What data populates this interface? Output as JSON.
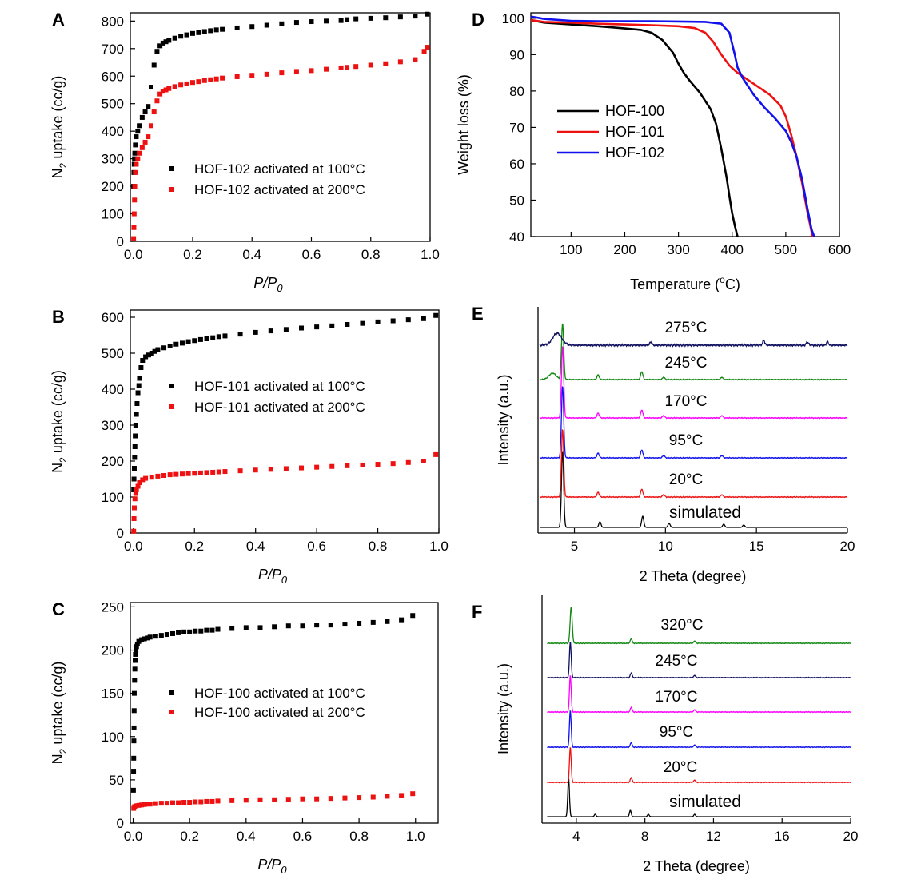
{
  "figure": {
    "colors": {
      "black": "#000000",
      "red": "#ee1111",
      "blue": "#1111ee",
      "navy": "#101060",
      "green": "#118811",
      "magenta": "#ff00ff"
    }
  },
  "chart_data": [
    {
      "panel": "A",
      "type": "scatter",
      "title": "",
      "xlabel": "P/P",
      "xlabel_sub": "0",
      "ylabel": "N",
      "ylabel_sub": "2",
      "ylabel_rest": " uptake (cc/g)",
      "xlim": [
        -0.01,
        1.0
      ],
      "ylim": [
        0,
        830
      ],
      "xticks": [
        "0.0",
        "0.2",
        "0.4",
        "0.6",
        "0.8",
        "1.0"
      ],
      "xtick_values": [
        0,
        0.2,
        0.4,
        0.6,
        0.8,
        1.0
      ],
      "yticks": [
        "0",
        "100",
        "200",
        "300",
        "400",
        "500",
        "600",
        "700",
        "800"
      ],
      "ytick_values": [
        0,
        100,
        200,
        300,
        400,
        500,
        600,
        700,
        800
      ],
      "legend_position": "center-right",
      "series": [
        {
          "name": "HOF-102 activated at 100°C",
          "color": "#000000",
          "x": [
            0.001,
            0.002,
            0.003,
            0.004,
            0.005,
            0.007,
            0.01,
            0.015,
            0.02,
            0.03,
            0.04,
            0.05,
            0.06,
            0.07,
            0.08,
            0.09,
            0.1,
            0.11,
            0.12,
            0.14,
            0.16,
            0.18,
            0.2,
            0.22,
            0.24,
            0.26,
            0.28,
            0.3,
            0.35,
            0.4,
            0.45,
            0.5,
            0.55,
            0.6,
            0.65,
            0.7,
            0.72,
            0.75,
            0.8,
            0.85,
            0.9,
            0.95,
            0.99
          ],
          "y": [
            200,
            250,
            280,
            300,
            320,
            350,
            380,
            400,
            420,
            450,
            470,
            490,
            560,
            640,
            690,
            710,
            720,
            725,
            730,
            738,
            745,
            750,
            755,
            758,
            762,
            765,
            768,
            770,
            775,
            780,
            785,
            790,
            795,
            798,
            800,
            802,
            805,
            808,
            810,
            812,
            815,
            818,
            825
          ]
        },
        {
          "name": "HOF-102 activated at 200°C",
          "color": "#ee1111",
          "x": [
            0.001,
            0.002,
            0.003,
            0.004,
            0.005,
            0.007,
            0.01,
            0.015,
            0.02,
            0.03,
            0.04,
            0.05,
            0.06,
            0.07,
            0.08,
            0.09,
            0.1,
            0.11,
            0.12,
            0.14,
            0.16,
            0.18,
            0.2,
            0.22,
            0.24,
            0.26,
            0.28,
            0.3,
            0.35,
            0.4,
            0.45,
            0.5,
            0.55,
            0.6,
            0.65,
            0.7,
            0.72,
            0.75,
            0.8,
            0.85,
            0.9,
            0.95,
            0.98,
            0.99
          ],
          "y": [
            10,
            50,
            100,
            150,
            200,
            250,
            280,
            300,
            320,
            340,
            360,
            380,
            420,
            470,
            510,
            535,
            545,
            550,
            555,
            562,
            568,
            572,
            577,
            580,
            584,
            587,
            590,
            593,
            598,
            603,
            607,
            612,
            617,
            620,
            625,
            630,
            632,
            635,
            640,
            645,
            652,
            660,
            690,
            705
          ]
        }
      ]
    },
    {
      "panel": "B",
      "type": "scatter",
      "title": "",
      "xlabel": "P/P",
      "xlabel_sub": "0",
      "ylabel": "N",
      "ylabel_sub": "2",
      "ylabel_rest": " uptake (cc/g)",
      "xlim": [
        -0.01,
        1.0
      ],
      "ylim": [
        0,
        620
      ],
      "xticks": [
        "0.0",
        "0.2",
        "0.4",
        "0.6",
        "0.8",
        "1.0"
      ],
      "xtick_values": [
        0,
        0.2,
        0.4,
        0.6,
        0.8,
        1.0
      ],
      "yticks": [
        "0",
        "100",
        "200",
        "300",
        "400",
        "500",
        "600"
      ],
      "ytick_values": [
        0,
        100,
        200,
        300,
        400,
        500,
        600
      ],
      "legend_position": "center-right",
      "series": [
        {
          "name": "HOF-101 activated at 100°C",
          "color": "#000000",
          "x": [
            0.001,
            0.002,
            0.003,
            0.004,
            0.005,
            0.006,
            0.008,
            0.01,
            0.012,
            0.015,
            0.018,
            0.02,
            0.025,
            0.03,
            0.04,
            0.05,
            0.06,
            0.07,
            0.08,
            0.1,
            0.12,
            0.14,
            0.16,
            0.18,
            0.2,
            0.22,
            0.24,
            0.26,
            0.28,
            0.3,
            0.35,
            0.4,
            0.45,
            0.5,
            0.55,
            0.6,
            0.65,
            0.7,
            0.75,
            0.8,
            0.85,
            0.9,
            0.95,
            0.99
          ],
          "y": [
            120,
            150,
            180,
            210,
            240,
            270,
            300,
            330,
            360,
            390,
            410,
            430,
            460,
            480,
            490,
            495,
            500,
            505,
            510,
            515,
            520,
            525,
            528,
            532,
            535,
            538,
            540,
            543,
            546,
            548,
            553,
            558,
            562,
            566,
            570,
            573,
            576,
            580,
            583,
            587,
            590,
            593,
            596,
            605
          ]
        },
        {
          "name": "HOF-101 activated at 200°C",
          "color": "#ee1111",
          "x": [
            0.001,
            0.002,
            0.003,
            0.005,
            0.008,
            0.01,
            0.015,
            0.02,
            0.03,
            0.04,
            0.06,
            0.08,
            0.1,
            0.12,
            0.14,
            0.16,
            0.18,
            0.2,
            0.22,
            0.24,
            0.26,
            0.28,
            0.3,
            0.35,
            0.4,
            0.45,
            0.5,
            0.55,
            0.6,
            0.65,
            0.7,
            0.75,
            0.8,
            0.85,
            0.9,
            0.95,
            0.99
          ],
          "y": [
            5,
            40,
            70,
            95,
            110,
            120,
            130,
            140,
            148,
            152,
            155,
            158,
            160,
            162,
            163,
            164,
            165,
            166,
            167,
            168,
            169,
            170,
            171,
            173,
            175,
            177,
            179,
            181,
            183,
            185,
            187,
            189,
            191,
            193,
            196,
            200,
            218
          ]
        }
      ]
    },
    {
      "panel": "C",
      "type": "scatter",
      "title": "",
      "xlabel": "P/P",
      "xlabel_sub": "0",
      "ylabel": "N",
      "ylabel_sub": "2",
      "ylabel_rest": " uptake (cc/g)",
      "xlim": [
        -0.01,
        1.08
      ],
      "ylim": [
        0,
        255
      ],
      "xticks": [
        "0.0",
        "0.2",
        "0.4",
        "0.6",
        "0.8",
        "1.0"
      ],
      "xtick_values": [
        0,
        0.2,
        0.4,
        0.6,
        0.8,
        1.0
      ],
      "yticks": [
        "0",
        "50",
        "100",
        "150",
        "200",
        "250"
      ],
      "ytick_values": [
        0,
        50,
        100,
        150,
        200,
        250
      ],
      "legend_position": "center-right",
      "series": [
        {
          "name": "HOF-100 activated at 100°C",
          "color": "#000000",
          "x": [
            0.001,
            0.0015,
            0.002,
            0.0025,
            0.003,
            0.0035,
            0.004,
            0.005,
            0.006,
            0.007,
            0.008,
            0.01,
            0.012,
            0.015,
            0.02,
            0.03,
            0.04,
            0.05,
            0.06,
            0.08,
            0.1,
            0.12,
            0.14,
            0.16,
            0.18,
            0.2,
            0.22,
            0.24,
            0.26,
            0.28,
            0.3,
            0.35,
            0.4,
            0.45,
            0.5,
            0.55,
            0.6,
            0.65,
            0.7,
            0.75,
            0.8,
            0.85,
            0.9,
            0.95,
            0.99
          ],
          "y": [
            38,
            60,
            75,
            95,
            110,
            130,
            150,
            165,
            178,
            188,
            195,
            200,
            204,
            207,
            210,
            212,
            213,
            214,
            215,
            216,
            217,
            218,
            219,
            220,
            221,
            221,
            222,
            222,
            223,
            223,
            224,
            225,
            226,
            226,
            227,
            228,
            228,
            229,
            229,
            230,
            231,
            232,
            233,
            235,
            240
          ]
        },
        {
          "name": "HOF-100 activated at 200°C",
          "color": "#ee1111",
          "x": [
            0.002,
            0.005,
            0.01,
            0.02,
            0.03,
            0.04,
            0.05,
            0.06,
            0.08,
            0.1,
            0.12,
            0.14,
            0.16,
            0.18,
            0.2,
            0.22,
            0.24,
            0.26,
            0.28,
            0.3,
            0.35,
            0.4,
            0.45,
            0.5,
            0.55,
            0.6,
            0.65,
            0.7,
            0.75,
            0.8,
            0.85,
            0.9,
            0.95,
            0.99
          ],
          "y": [
            17,
            19,
            20,
            20.5,
            21,
            21.5,
            22,
            22,
            22.5,
            23,
            23,
            23.5,
            23.5,
            24,
            24,
            24.5,
            24.5,
            25,
            25,
            25.5,
            26,
            26.5,
            27,
            27,
            27.5,
            28,
            28,
            28.5,
            29,
            29.5,
            30,
            31,
            32,
            34
          ]
        }
      ]
    },
    {
      "panel": "D",
      "type": "line",
      "title": "",
      "xlabel": "Temperature (",
      "xlabel_sup": "o",
      "xlabel_rest": "C)",
      "ylabel": "Weight loss (%)",
      "xlim": [
        25,
        600
      ],
      "ylim": [
        40,
        101.5
      ],
      "xticks": [
        "100",
        "200",
        "300",
        "400",
        "500",
        "600"
      ],
      "xtick_values": [
        100,
        200,
        300,
        400,
        500,
        600
      ],
      "yticks": [
        "40",
        "50",
        "60",
        "70",
        "80",
        "90",
        "100"
      ],
      "ytick_values": [
        40,
        50,
        60,
        70,
        80,
        90,
        100
      ],
      "legend_position": "center-left",
      "series": [
        {
          "name": "HOF-100",
          "color": "#000000",
          "x": [
            25,
            50,
            100,
            150,
            200,
            230,
            250,
            270,
            290,
            300,
            310,
            320,
            340,
            360,
            370,
            380,
            390,
            395,
            400,
            405,
            410
          ],
          "y": [
            99.5,
            98.8,
            98.3,
            97.8,
            97.2,
            96.8,
            96.0,
            94.0,
            90.5,
            87.5,
            85.0,
            83.0,
            79.5,
            75.0,
            71.0,
            64.0,
            56.0,
            51.0,
            46.5,
            43.0,
            40.0
          ]
        },
        {
          "name": "HOF-101",
          "color": "#ee1111",
          "x": [
            25,
            50,
            100,
            150,
            200,
            250,
            300,
            330,
            350,
            365,
            380,
            395,
            410,
            430,
            450,
            470,
            490,
            500,
            510,
            520,
            530,
            540,
            550
          ],
          "y": [
            99.5,
            99.0,
            98.8,
            98.5,
            98.3,
            98.1,
            97.8,
            97.3,
            96.0,
            93.5,
            90.0,
            87.0,
            85.0,
            83.0,
            81.0,
            79.0,
            76.0,
            73.0,
            68.0,
            62.0,
            55.0,
            47.0,
            40.0
          ]
        },
        {
          "name": "HOF-102",
          "color": "#1111ee",
          "x": [
            25,
            50,
            100,
            150,
            200,
            250,
            300,
            350,
            380,
            395,
            405,
            410,
            420,
            440,
            460,
            480,
            500,
            510,
            520,
            530,
            540,
            548,
            553
          ],
          "y": [
            100.5,
            99.8,
            99.3,
            99.2,
            99.2,
            99.2,
            99.1,
            99.0,
            98.5,
            96.0,
            90.0,
            86.5,
            83.5,
            79.0,
            75.5,
            72.5,
            69.0,
            66.0,
            62.0,
            56.0,
            48.0,
            42.0,
            40.0
          ]
        }
      ]
    },
    {
      "panel": "E",
      "type": "line",
      "title": "",
      "xlabel": "2 Theta (degree)",
      "ylabel": "Intensity (a.u.)",
      "xlim": [
        3,
        20
      ],
      "xticks": [
        "5",
        "10",
        "15",
        "20"
      ],
      "xtick_values": [
        5,
        10,
        15,
        20
      ],
      "series": [
        {
          "name": "simulated",
          "color": "#000000"
        },
        {
          "name": "20°C",
          "color": "#ee1111"
        },
        {
          "name": "95°C",
          "color": "#1111ee"
        },
        {
          "name": "170°C",
          "color": "#ff00ff"
        },
        {
          "name": "245°C",
          "color": "#118811"
        },
        {
          "name": "275°C",
          "color": "#101060"
        }
      ]
    },
    {
      "panel": "F",
      "type": "line",
      "title": "",
      "xlabel": "2 Theta (degree)",
      "ylabel": "Intensity (a.u.)",
      "xlim": [
        2,
        20
      ],
      "xticks": [
        "4",
        "8",
        "12",
        "16",
        "20"
      ],
      "xtick_values": [
        4,
        8,
        12,
        16,
        20
      ],
      "series": [
        {
          "name": "simulated",
          "color": "#000000"
        },
        {
          "name": "20°C",
          "color": "#ee1111"
        },
        {
          "name": "95°C",
          "color": "#1111ee"
        },
        {
          "name": "170°C",
          "color": "#ff00ff"
        },
        {
          "name": "245°C",
          "color": "#101060"
        },
        {
          "name": "320°C",
          "color": "#118811"
        }
      ]
    }
  ]
}
